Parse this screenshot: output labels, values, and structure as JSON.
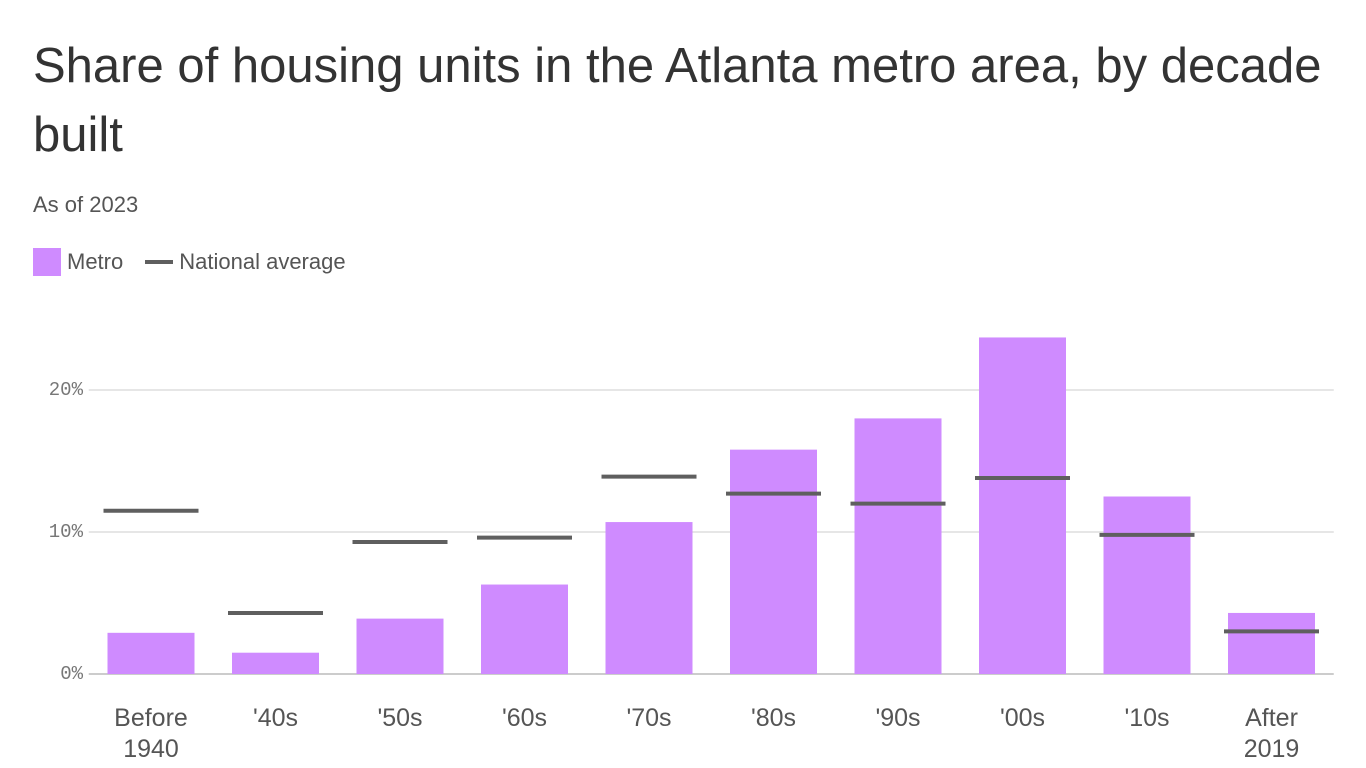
{
  "chart_data": {
    "type": "bar",
    "title": "Share of housing units in the Atlanta metro area, by decade built",
    "subtitle": "As of 2023",
    "categories": [
      "Before 1940",
      "'40s",
      "'50s",
      "'60s",
      "'70s",
      "'80s",
      "'90s",
      "'00s",
      "'10s",
      "After 2019"
    ],
    "series": [
      {
        "name": "Metro",
        "color": "#cf8bff",
        "values": [
          2.9,
          1.5,
          3.9,
          6.3,
          10.7,
          15.8,
          18.0,
          23.7,
          12.5,
          4.3
        ]
      },
      {
        "name": "National average",
        "color": "#5f5f5f",
        "values": [
          11.5,
          4.3,
          9.3,
          9.6,
          13.9,
          12.7,
          12.0,
          13.8,
          9.8,
          3.0
        ]
      }
    ],
    "ylim": [
      0,
      25
    ],
    "yticks": [
      {
        "value": 0,
        "label": "0%"
      },
      {
        "value": 10,
        "label": "10%"
      },
      {
        "value": 20,
        "label": "20%"
      }
    ],
    "grid": true
  }
}
